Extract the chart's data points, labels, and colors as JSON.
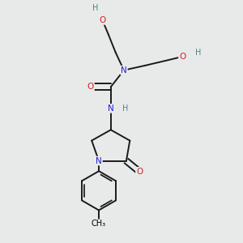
{
  "bg_color": "#e8eaea",
  "atom_colors": {
    "C": "#000000",
    "N": "#2222cc",
    "O": "#cc2222",
    "H": "#4a8888"
  },
  "bond_color": "#1a1a1a",
  "bond_width": 1.4,
  "figsize": [
    3.0,
    3.0
  ],
  "dpi": 100,
  "xlim": [
    0,
    10
  ],
  "ylim": [
    0,
    10
  ]
}
